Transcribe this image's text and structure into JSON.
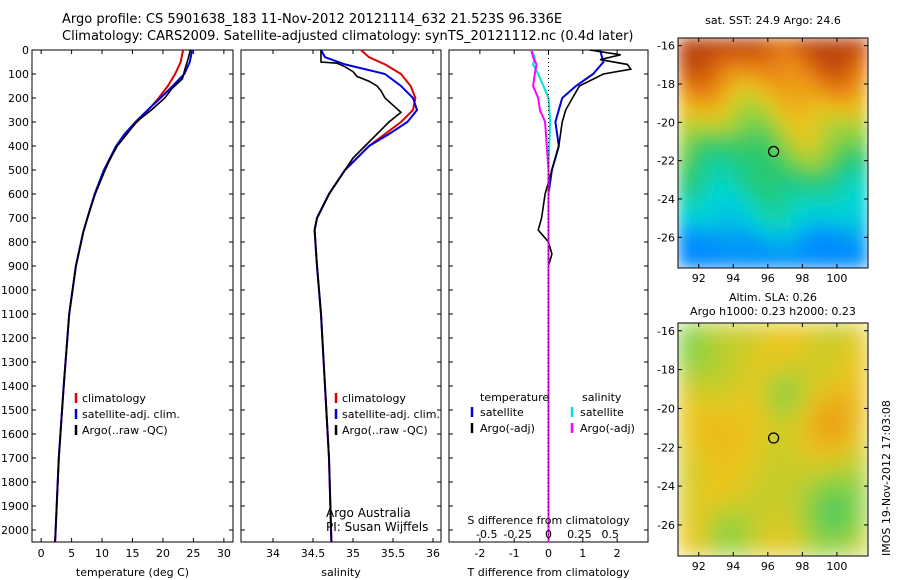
{
  "header": {
    "line1": "Argo profile: CS 5901638_183 11-Nov-2012 20121114_632 21.523S 96.336E",
    "line2": "Climatology: CARS2009. Satellite-adjusted climatology: synTS_20121112.nc (0.4d later)"
  },
  "credit": {
    "line1": "Argo Australia",
    "line2": "PI: Susan Wijffels"
  },
  "stamp": "IMOS 19-Nov-2012 17:03:08",
  "colors": {
    "climatology": "#e00000",
    "satellite": "#0000e0",
    "argo": "#000000",
    "sal_satellite": "#00e0e0",
    "sal_argo": "#ff00ff"
  },
  "chart_data": [
    {
      "type": "line",
      "name": "temperature-profile",
      "xlabel": "temperature (deg C)",
      "ylim": [
        0,
        2050
      ],
      "xlim": [
        -1.5,
        31.5
      ],
      "xticks": [
        0,
        5,
        10,
        15,
        20,
        25,
        30
      ],
      "yticks": [
        0,
        100,
        200,
        300,
        400,
        500,
        600,
        700,
        800,
        900,
        1000,
        1100,
        1200,
        1300,
        1400,
        1500,
        1600,
        1700,
        1800,
        1900,
        2000
      ],
      "legend": [
        "climatology",
        "satellite-adj. clim.",
        "Argo(..raw -QC)"
      ],
      "series": [
        {
          "name": "climatology",
          "color": "#e00000",
          "depth": [
            0,
            50,
            100,
            150,
            200,
            250,
            300,
            350,
            400,
            500,
            600,
            700,
            760,
            900,
            1100,
            1400,
            1700,
            2050
          ],
          "values": [
            23.3,
            22.9,
            22.0,
            20.8,
            19.3,
            17.6,
            15.7,
            13.9,
            12.4,
            10.4,
            8.8,
            7.6,
            6.9,
            5.7,
            4.6,
            3.7,
            2.9,
            2.3
          ]
        },
        {
          "name": "satellite-adj. clim.",
          "color": "#0000e0",
          "depth": [
            0,
            50,
            100,
            150,
            200,
            250,
            300,
            350,
            400,
            500,
            600,
            700,
            760,
            900,
            1100,
            1400,
            1700,
            2050
          ],
          "values": [
            24.8,
            24.4,
            23.5,
            21.6,
            19.6,
            17.5,
            15.5,
            13.7,
            12.3,
            10.3,
            8.8,
            7.6,
            6.9,
            5.7,
            4.6,
            3.7,
            2.9,
            2.3
          ]
        },
        {
          "name": "Argo(..raw -QC)",
          "color": "#000000",
          "depth": [
            0,
            40,
            80,
            120,
            160,
            200,
            250,
            300,
            350,
            400,
            450,
            500,
            600,
            700,
            760,
            900,
            1100,
            1400,
            1700,
            2050
          ],
          "values": [
            24.5,
            24.1,
            23.6,
            23.2,
            21.5,
            20.3,
            18.1,
            15.6,
            14.1,
            12.5,
            11.4,
            10.5,
            8.9,
            7.6,
            6.9,
            5.7,
            4.6,
            3.7,
            2.9,
            2.3
          ]
        }
      ]
    },
    {
      "type": "line",
      "name": "salinity-profile",
      "xlabel": "salinity",
      "ylim": [
        0,
        2050
      ],
      "xlim": [
        33.6,
        36.1
      ],
      "xticks": [
        34,
        34.5,
        35,
        35.5,
        36
      ],
      "legend": [
        "climatology",
        "satellite-adj. clim.",
        "Argo(..raw -QC)"
      ],
      "series": [
        {
          "name": "climatology",
          "color": "#e00000",
          "depth": [
            0,
            30,
            60,
            100,
            150,
            200,
            250,
            300,
            350,
            400,
            450,
            500,
            600,
            700,
            750,
            900,
            1100,
            1400,
            1700,
            2050
          ],
          "values": [
            35.1,
            35.2,
            35.4,
            35.6,
            35.72,
            35.78,
            35.75,
            35.6,
            35.4,
            35.2,
            35.05,
            34.9,
            34.7,
            34.55,
            34.52,
            34.55,
            34.6,
            34.65,
            34.7,
            34.73
          ]
        },
        {
          "name": "satellite-adj. clim.",
          "color": "#0000e0",
          "depth": [
            0,
            30,
            60,
            100,
            150,
            200,
            250,
            300,
            350,
            400,
            450,
            500,
            600,
            700,
            750,
            900,
            1100,
            1400,
            1700,
            2050
          ],
          "values": [
            34.6,
            34.65,
            34.9,
            35.4,
            35.6,
            35.75,
            35.8,
            35.68,
            35.45,
            35.2,
            35.05,
            34.9,
            34.7,
            34.55,
            34.52,
            34.55,
            34.6,
            34.65,
            34.7,
            34.73
          ]
        },
        {
          "name": "Argo(..raw -QC)",
          "color": "#000000",
          "depth": [
            0,
            50,
            55,
            70,
            90,
            110,
            130,
            150,
            170,
            200,
            230,
            260,
            300,
            350,
            400,
            450,
            500,
            600,
            700,
            750,
            900,
            1100,
            1400,
            1700,
            2050
          ],
          "values": [
            34.6,
            34.6,
            34.8,
            34.9,
            35.0,
            35.05,
            35.2,
            35.3,
            35.35,
            35.4,
            35.5,
            35.6,
            35.45,
            35.3,
            35.15,
            35.0,
            34.9,
            34.7,
            34.55,
            34.52,
            34.55,
            34.6,
            34.65,
            34.7,
            34.73
          ]
        }
      ]
    },
    {
      "type": "line",
      "name": "difference-profile",
      "xlabel": "T difference from climatology",
      "top_axis_label": "S difference from climatology",
      "ylim": [
        0,
        2050
      ],
      "xlim": [
        -2.9,
        2.9
      ],
      "xticks": [
        -2,
        -1,
        0,
        1,
        2
      ],
      "top_ticks": [
        -0.5,
        -0.25,
        0,
        0.25,
        0.5
      ],
      "top_tick_labels": [
        "-0.5",
        "-0.25",
        "0",
        "0.25",
        "0.5"
      ],
      "legend_headers": [
        "temperature",
        "salinity"
      ],
      "legend": [
        "satellite",
        "Argo(-adj)",
        "satellite",
        "Argo(-adj)"
      ],
      "series": [
        {
          "name": "temperature satellite",
          "color": "#0000e0",
          "depth": [
            0,
            50,
            100,
            150,
            200,
            300,
            400,
            500,
            600,
            700,
            800,
            900,
            1100,
            1400,
            1700,
            2050
          ],
          "values": [
            1.5,
            1.6,
            1.3,
            0.8,
            0.4,
            0.2,
            0.3,
            0.1,
            0.0,
            0.0,
            0.0,
            0.0,
            0.0,
            0.0,
            0.0,
            0.0
          ]
        },
        {
          "name": "temperature Argo(-adj)",
          "color": "#000000",
          "depth": [
            0,
            20,
            40,
            60,
            80,
            100,
            150,
            200,
            250,
            300,
            400,
            500,
            600,
            700,
            750,
            800,
            850,
            900,
            1100,
            1400,
            1700,
            2050
          ],
          "values": [
            1.2,
            2.1,
            1.5,
            2.3,
            2.4,
            1.6,
            0.9,
            0.7,
            0.5,
            0.4,
            0.3,
            0.1,
            -0.1,
            -0.2,
            -0.3,
            0.0,
            0.1,
            0.0,
            0.0,
            0.0,
            0.0,
            0.0
          ]
        },
        {
          "name": "salinity satellite",
          "color": "#00e0e0",
          "depth": [
            0,
            30,
            60,
            100,
            150,
            200,
            300,
            400,
            500,
            600,
            700,
            900,
            1100,
            1400,
            1700,
            2050
          ],
          "values": [
            -0.5,
            -0.4,
            -0.45,
            -0.3,
            -0.15,
            0.0,
            0.05,
            0.02,
            0.0,
            0.0,
            0.0,
            0.0,
            0.0,
            0.0,
            0.0,
            0.0
          ]
        },
        {
          "name": "salinity Argo(-adj)",
          "color": "#ff00ff",
          "depth": [
            0,
            30,
            60,
            100,
            150,
            200,
            250,
            300,
            400,
            500,
            600,
            700,
            800,
            900,
            1100,
            1400,
            1700,
            2050
          ],
          "values": [
            -0.5,
            -0.45,
            -0.35,
            -0.4,
            -0.45,
            -0.3,
            -0.25,
            -0.1,
            -0.05,
            0.0,
            0.0,
            0.0,
            0.0,
            0.0,
            0.0,
            0.0,
            0.0,
            0.0
          ]
        }
      ]
    },
    {
      "type": "heatmap",
      "name": "sst-map",
      "title": "sat. SST: 24.9 Argo: 24.6",
      "xlim": [
        90.8,
        101.8
      ],
      "ylim": [
        -27.6,
        -15.6
      ],
      "xticks": [
        92,
        94,
        96,
        98,
        100
      ],
      "yticks": [
        -16,
        -18,
        -20,
        -22,
        -24,
        -26
      ],
      "marker": {
        "lon": 96.336,
        "lat": -21.523
      }
    },
    {
      "type": "heatmap",
      "name": "sla-map",
      "title": "Altim. SLA: 0.26",
      "subtitle": "Argo h1000: 0.23 h2000: 0.23",
      "xlim": [
        90.8,
        101.8
      ],
      "ylim": [
        -27.6,
        -15.6
      ],
      "xticks": [
        92,
        94,
        96,
        98,
        100
      ],
      "yticks": [
        -16,
        -18,
        -20,
        -22,
        -24,
        -26
      ],
      "marker": {
        "lon": 96.336,
        "lat": -21.523
      }
    }
  ]
}
